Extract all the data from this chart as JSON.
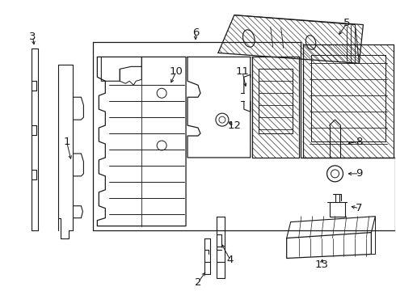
{
  "bg_color": "#ffffff",
  "line_color": "#1a1a1a",
  "lw": 0.8,
  "fig_w": 4.9,
  "fig_h": 3.6,
  "dpi": 100
}
